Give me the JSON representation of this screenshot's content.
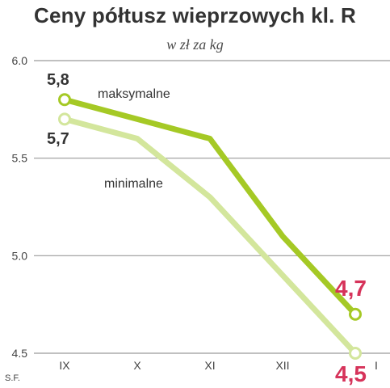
{
  "title": "Ceny półtusz wieprzowych kl. R",
  "subtitle": "w zł za kg",
  "source": "S.F.",
  "colors": {
    "max_line": "#a5c925",
    "min_line": "#d3e69c",
    "highlight": "#d6335a",
    "label_dark": "#333333",
    "axis_text": "#444444",
    "grid": "#9a9a9a"
  },
  "chart_data": {
    "type": "line",
    "categories": [
      "IX",
      "X",
      "XI",
      "XII",
      "I"
    ],
    "ylim": [
      4.5,
      6.0
    ],
    "yticks": [
      "6.0",
      "5.5",
      "5.0",
      "4.5"
    ],
    "ytick_values": [
      6.0,
      5.5,
      5.0,
      4.5
    ],
    "grid": true,
    "series": [
      {
        "name": "maksymalne",
        "values": [
          5.8,
          5.7,
          5.6,
          5.1,
          4.7
        ],
        "start_label": "5,8",
        "end_label": "4,7"
      },
      {
        "name": "minimalne",
        "values": [
          5.7,
          5.6,
          5.3,
          4.9,
          4.5
        ],
        "start_label": "5,7",
        "end_label": "4,5"
      }
    ]
  }
}
